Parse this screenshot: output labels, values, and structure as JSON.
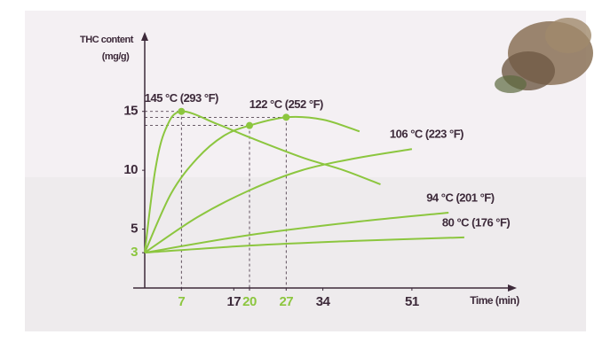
{
  "chart_data": {
    "type": "line",
    "y_label": [
      "THC content",
      "(mg/g)"
    ],
    "x_label": "Time (min)",
    "xlim": [
      0,
      70
    ],
    "ylim": [
      0,
      21
    ],
    "xticks": [
      7,
      17,
      20,
      27,
      34,
      51
    ],
    "xtick_colors": [
      "#8cc63f",
      "#3d2a3a",
      "#8cc63f",
      "#8cc63f",
      "#3d2a3a",
      "#3d2a3a"
    ],
    "yticks": [
      3,
      5,
      10,
      15
    ],
    "ytick_colors": [
      "#8cc63f",
      "#3d2a3a",
      "#3d2a3a",
      "#3d2a3a"
    ],
    "highlights": [
      {
        "x": 7,
        "y": 15
      },
      {
        "x": 20,
        "y": 13.8
      },
      {
        "x": 27,
        "y": 14.5
      }
    ],
    "series": [
      {
        "name": "145 °C (293 °F)",
        "color": "#8cc63f",
        "x": [
          0,
          2,
          4,
          7,
          14,
          20,
          30,
          38,
          45
        ],
        "values": [
          3,
          10,
          13.5,
          15,
          13.9,
          12.8,
          11.1,
          10,
          8.8
        ]
      },
      {
        "name": "122 °C (252 °F)",
        "color": "#8cc63f",
        "x": [
          0,
          5,
          10,
          15,
          20,
          27,
          34,
          41
        ],
        "values": [
          3,
          8,
          11,
          12.9,
          13.8,
          14.5,
          14.3,
          13.3
        ]
      },
      {
        "name": "106 °C (223 °F)",
        "color": "#8cc63f",
        "x": [
          0,
          10,
          20,
          30,
          40,
          51
        ],
        "values": [
          3,
          6,
          8.3,
          10,
          11,
          11.8
        ]
      },
      {
        "name": "94 °C (201 °F)",
        "color": "#8cc63f",
        "x": [
          0,
          20,
          40,
          58
        ],
        "values": [
          3,
          4.5,
          5.6,
          6.4
        ]
      },
      {
        "name": "80 °C (176 °F)",
        "color": "#8cc63f",
        "x": [
          0,
          20,
          40,
          61
        ],
        "values": [
          3,
          3.6,
          4,
          4.3
        ]
      }
    ]
  }
}
